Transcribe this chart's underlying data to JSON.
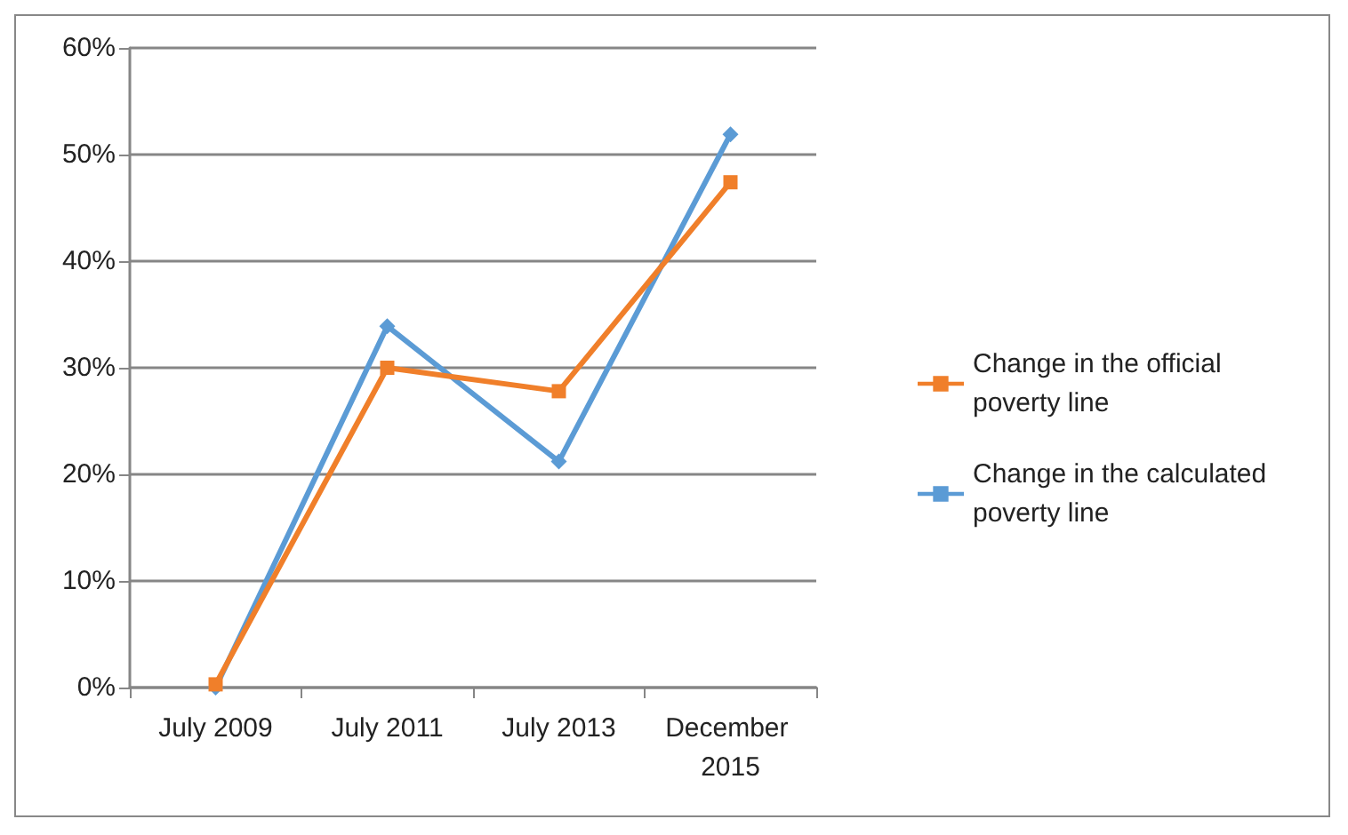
{
  "chart_data": {
    "type": "line",
    "categories": [
      "July 2009",
      "July 2011",
      "July 2013",
      "December 2015"
    ],
    "series": [
      {
        "name": "Change in the official poverty line",
        "color": "#f07f2a",
        "marker": "square",
        "values": [
          0.3,
          30,
          27.8,
          47.4
        ]
      },
      {
        "name": "Change in the calculated poverty line",
        "color": "#5b9bd5",
        "marker": "diamond",
        "values": [
          0,
          33.9,
          21.2,
          51.9
        ]
      }
    ],
    "ylim": [
      0,
      60
    ],
    "yticks": [
      {
        "value": 0,
        "label": "0%"
      },
      {
        "value": 10,
        "label": "10%"
      },
      {
        "value": 20,
        "label": "20%"
      },
      {
        "value": 30,
        "label": "30%"
      },
      {
        "value": 40,
        "label": "40%"
      },
      {
        "value": 50,
        "label": "50%"
      },
      {
        "value": 60,
        "label": "60%"
      }
    ],
    "grid": "y",
    "legend": "right",
    "line_style": "solid"
  }
}
